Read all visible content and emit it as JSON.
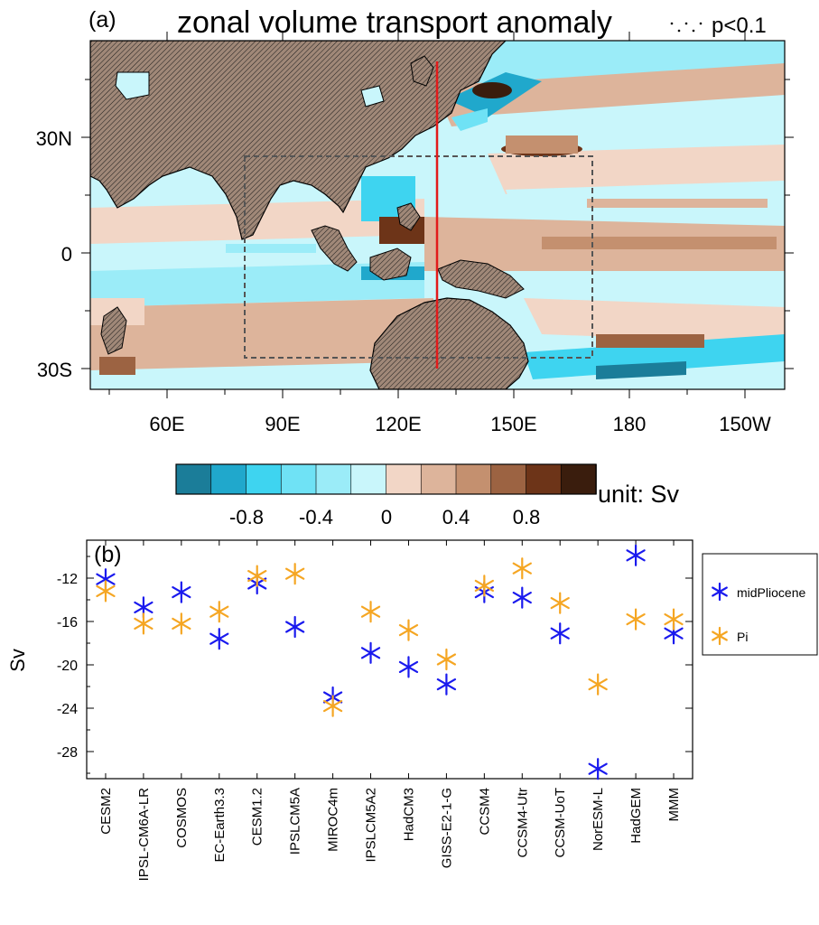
{
  "panel_a": {
    "label": "(a)",
    "title": "zonal volume transport anomaly",
    "sig_note": "p<0.1",
    "lat_labels": [
      "30N",
      "0",
      "30S"
    ],
    "lon_labels": [
      "60E",
      "90E",
      "120E",
      "150E",
      "180",
      "150W"
    ],
    "colorbar": {
      "ticks": [
        "-0.8",
        "-0.4",
        "0",
        "0.4",
        "0.8"
      ],
      "unit": "unit: Sv",
      "colors": [
        "#1b7d99",
        "#20a8cc",
        "#3ed4f0",
        "#6fe2f5",
        "#9becf8",
        "#c9f6fb",
        "#f2d6c6",
        "#ddb49b",
        "#c4906f",
        "#9c6342",
        "#6d3418",
        "#3a1d0d"
      ]
    },
    "land_color": "#a08878",
    "section_line_color": "#e21b1b"
  },
  "chart_data": {
    "type": "scatter",
    "panel_label": "(b)",
    "ylabel": "Sv",
    "ylim": [
      -30.5,
      -8.5
    ],
    "yticks": [
      -12,
      -16,
      -20,
      -24,
      -28
    ],
    "categories": [
      "CESM2",
      "IPSL-CM6A-LR",
      "COSMOS",
      "EC-Earth3.3",
      "CESM1.2",
      "IPSLCM5A",
      "MIROC4m",
      "IPSLCM5A2",
      "HadCM3",
      "GISS-E2-1-G",
      "CCSM4",
      "CCSM4-Utr",
      "CCSM-UoT",
      "NorESM-L",
      "HadGEM",
      "MMM"
    ],
    "series": [
      {
        "name": "midPliocene",
        "color": "#1a1aee",
        "values": [
          -12.1,
          -14.7,
          -13.3,
          -17.6,
          -12.5,
          -16.5,
          -23.0,
          -18.9,
          -20.2,
          -21.8,
          -13.3,
          -13.8,
          -17.1,
          -29.6,
          -9.9,
          -17.1
        ]
      },
      {
        "name": "Pi",
        "color": "#f5a623",
        "values": [
          -13.2,
          -16.2,
          -16.2,
          -15.1,
          -11.8,
          -11.6,
          -23.8,
          -15.1,
          -16.8,
          -19.5,
          -12.7,
          -11.1,
          -14.3,
          -21.8,
          -15.8,
          -15.8
        ]
      }
    ],
    "legend_position": "right"
  }
}
